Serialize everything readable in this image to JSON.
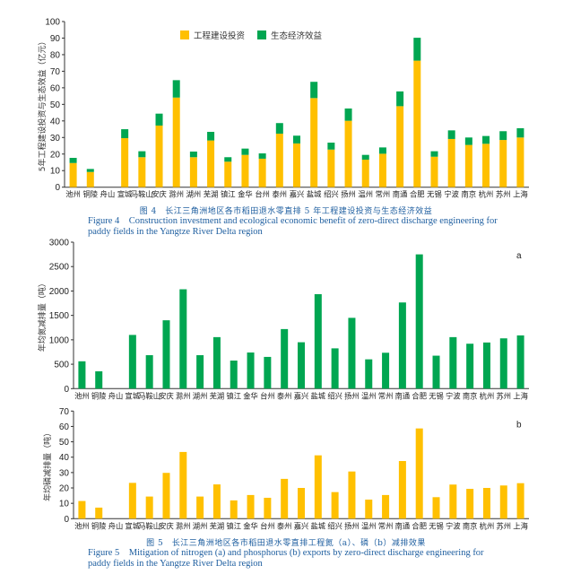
{
  "chart_data": [
    {
      "id": "fig4",
      "type": "bar",
      "stacked": true,
      "title": "",
      "ylabel": "5年工程建设投资与生态效益（亿元）",
      "xlabel": "",
      "ylim": [
        0,
        100
      ],
      "yticks": [
        0,
        10,
        20,
        30,
        40,
        50,
        60,
        70,
        80,
        90,
        100
      ],
      "grid": false,
      "legend_position": "top-right",
      "categories": [
        "池州",
        "铜陵",
        "舟山",
        "宣城",
        "马鞍山",
        "安庆",
        "滁州",
        "湖州",
        "芜湖",
        "镇江",
        "金华",
        "台州",
        "泰州",
        "嘉兴",
        "盐城",
        "绍兴",
        "扬州",
        "温州",
        "常州",
        "南通",
        "合肥",
        "无锡",
        "宁波",
        "南京",
        "杭州",
        "苏州",
        "上海"
      ],
      "series": [
        {
          "name": "工程建设投资",
          "color": "#FFC000",
          "values": [
            14.6,
            9.2,
            0,
            29.6,
            18.1,
            37.2,
            54.1,
            18.1,
            28.2,
            15.4,
            19.5,
            17.2,
            32.3,
            26.4,
            53.8,
            22.7,
            40.1,
            16.6,
            20.2,
            48.9,
            76.4,
            18.4,
            29.1,
            25.5,
            26.2,
            28.5,
            30.0
          ]
        },
        {
          "name": "生态经济效益",
          "color": "#00A651",
          "values": [
            3.1,
            1.8,
            0,
            5.4,
            3.6,
            7.2,
            10.5,
            3.4,
            5.2,
            2.7,
            3.8,
            3.2,
            6.4,
            4.7,
            9.8,
            4.2,
            7.4,
            2.9,
            3.8,
            8.9,
            13.8,
            3.3,
            5.2,
            4.5,
            4.7,
            5.3,
            5.6
          ]
        }
      ],
      "caption_cn": "图 4　长江三角洲地区各市稻田退水零直排 5 年工程建设投资与生态经济效益",
      "caption_en": "Figure 4　Construction investment and ecological economic benefit of zero-direct discharge engineering for paddy fields  in the Yangtze River Delta region"
    },
    {
      "id": "fig5a",
      "type": "bar",
      "panel_label": "a",
      "ylabel": "年均氮减排量（吨）",
      "xlabel": "",
      "ylim": [
        0,
        3000
      ],
      "yticks": [
        0,
        500,
        1000,
        1500,
        2000,
        2500,
        3000
      ],
      "grid": false,
      "color": "#00A651",
      "categories": [
        "池州",
        "铜陵",
        "舟山",
        "宣城",
        "马鞍山",
        "安庆",
        "滁州",
        "湖州",
        "芜湖",
        "镇江",
        "金华",
        "台州",
        "泰州",
        "嘉兴",
        "盐城",
        "绍兴",
        "扬州",
        "温州",
        "常州",
        "南通",
        "合肥",
        "无锡",
        "宁波",
        "南京",
        "杭州",
        "苏州",
        "上海"
      ],
      "values": [
        560,
        355,
        0,
        1100,
        685,
        1400,
        2035,
        685,
        1055,
        575,
        740,
        650,
        1220,
        950,
        1935,
        825,
        1450,
        600,
        735,
        1765,
        2750,
        675,
        1055,
        920,
        945,
        1030,
        1090
      ]
    },
    {
      "id": "fig5b",
      "type": "bar",
      "panel_label": "b",
      "ylabel": "年均磷减排量（吨）",
      "xlabel": "",
      "ylim": [
        0,
        70
      ],
      "yticks": [
        0,
        10,
        20,
        30,
        40,
        50,
        60,
        70
      ],
      "grid": false,
      "color": "#FFC000",
      "categories": [
        "池州",
        "铜陵",
        "舟山",
        "宣城",
        "马鞍山",
        "安庆",
        "滁州",
        "湖州",
        "芜湖",
        "镇江",
        "金华",
        "台州",
        "泰州",
        "嘉兴",
        "盐城",
        "绍兴",
        "扬州",
        "温州",
        "常州",
        "南通",
        "合肥",
        "无锡",
        "宁波",
        "南京",
        "杭州",
        "苏州",
        "上海"
      ],
      "values": [
        11.5,
        7.2,
        0,
        23.3,
        14.4,
        29.8,
        43.4,
        14.4,
        22.3,
        11.9,
        15.4,
        13.6,
        25.9,
        20.0,
        41.2,
        17.3,
        30.7,
        12.4,
        15.4,
        37.5,
        58.7,
        14.0,
        22.2,
        19.4,
        20.0,
        21.6,
        23.1
      ],
      "caption_cn": "图 5　长江三角洲地区各市稻田退水零直排工程氮（a）、磷（b）减排效果",
      "caption_en": "Figure 5　Mitigation of nitrogen (a) and phosphorus (b) exports by zero-direct discharge engineering for paddy fields in the Yangtze River Delta region"
    }
  ],
  "captions": {
    "fig4_cn": "图 4　长江三角洲地区各市稻田退水零直排 5 年工程建设投资与生态经济效益",
    "fig4_en": "Figure 4　Construction investment and ecological economic benefit of zero-direct discharge engineering for paddy fields  in the Yangtze River Delta region",
    "fig5_cn": "图 5　长江三角洲地区各市稻田退水零直排工程氮（a）、磷（b）减排效果",
    "fig5_en": "Figure 5　Mitigation of nitrogen (a) and phosphorus (b) exports by zero-direct discharge engineering for paddy fields in the Yangtze River Delta region"
  }
}
